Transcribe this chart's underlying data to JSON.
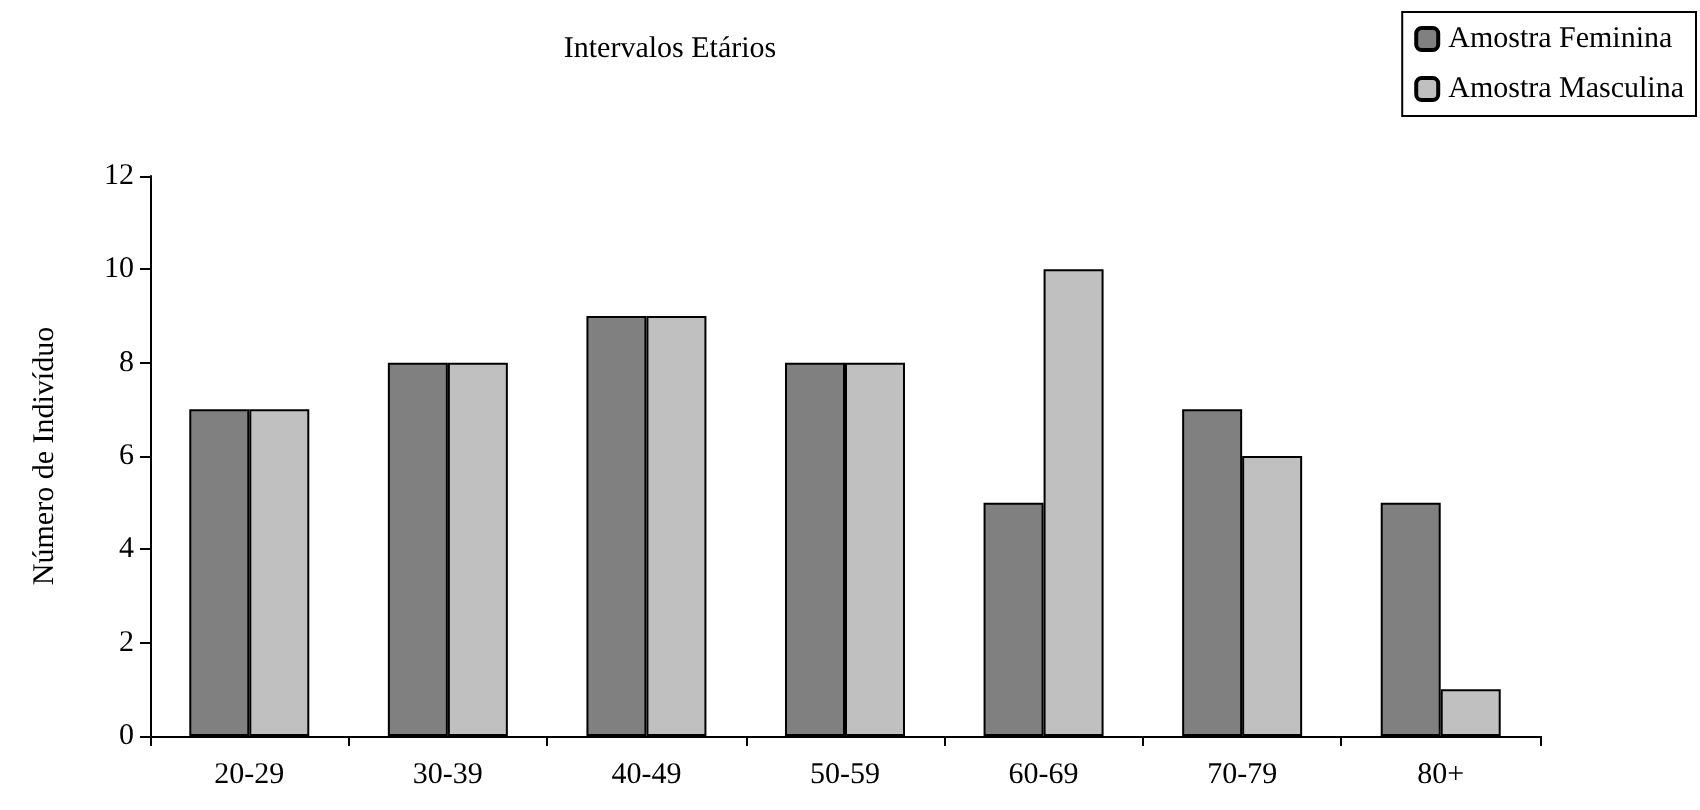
{
  "chart_data": {
    "type": "bar",
    "title": "Intervalos Etários",
    "ylabel": "Número de Indivíduo",
    "categories": [
      "20-29",
      "30-39",
      "40-49",
      "50-59",
      "60-69",
      "70-79",
      "80+"
    ],
    "series": [
      {
        "name": "Amostra Feminina",
        "color": "#808080",
        "values": [
          7,
          8,
          9,
          8,
          5,
          7,
          5
        ]
      },
      {
        "name": "Amostra Masculina",
        "color": "#c0c0c0",
        "values": [
          7,
          8,
          9,
          8,
          10,
          6,
          1
        ]
      }
    ],
    "ylim": [
      0,
      12
    ],
    "yticks": [
      0,
      2,
      4,
      6,
      8,
      10,
      12
    ],
    "grid": false,
    "legend": "top right"
  }
}
